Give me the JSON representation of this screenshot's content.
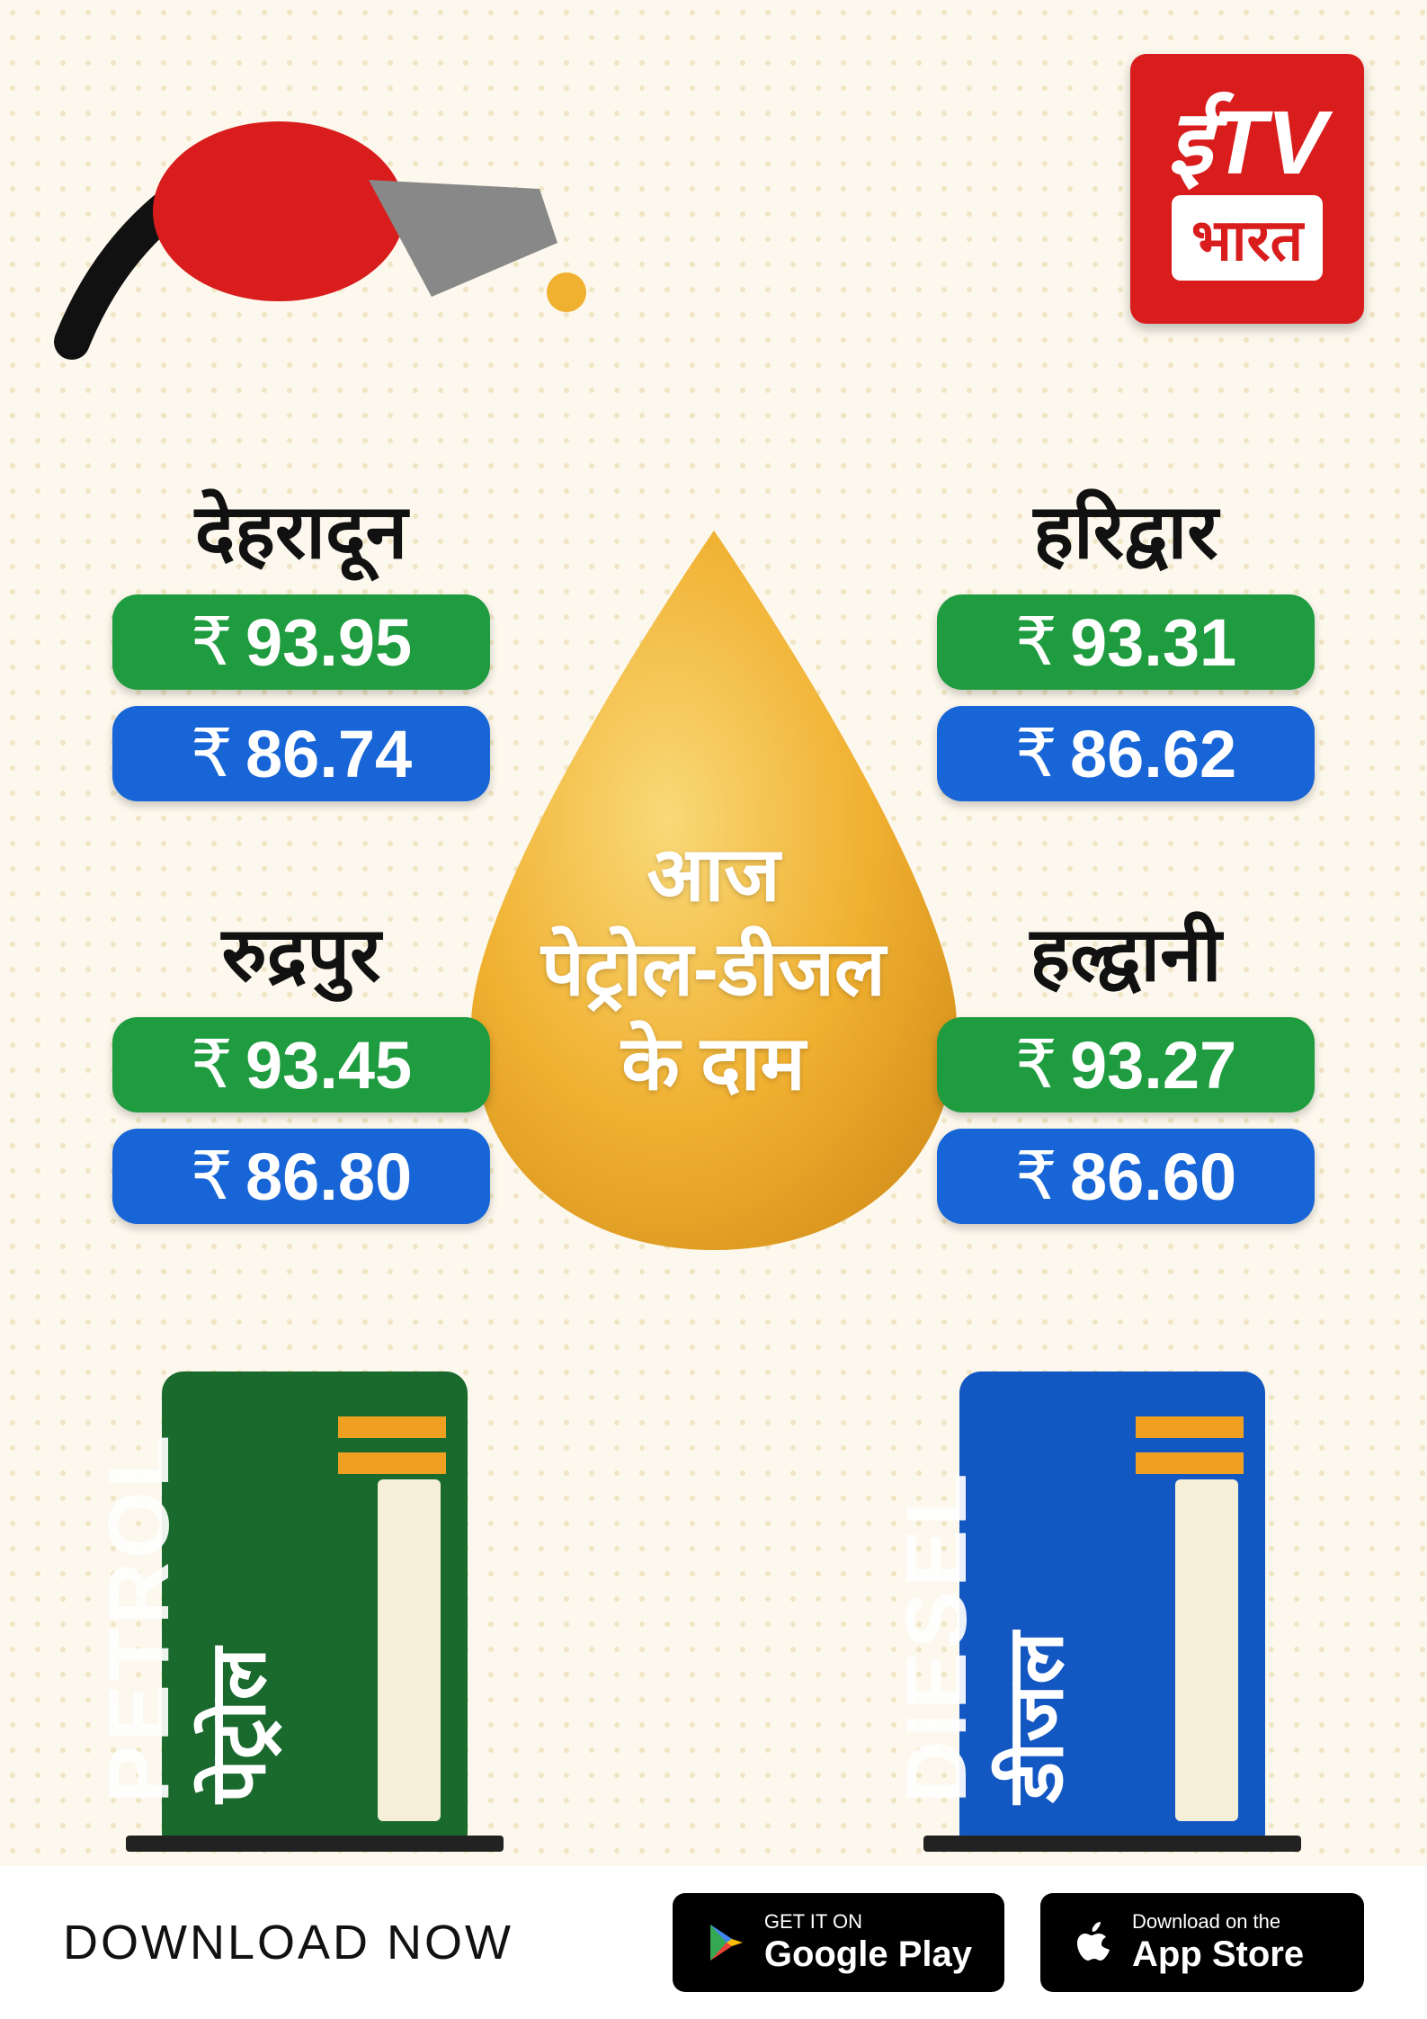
{
  "brand": {
    "logo_top": "ईTV",
    "logo_bottom": "भारत"
  },
  "currency": "₹",
  "drop": {
    "line1": "आज",
    "line2": "पेट्रोल-डीजल",
    "line3": "के दाम",
    "fill_light": "#f6c94a",
    "fill_dark": "#e2a92e"
  },
  "cities": [
    {
      "name": "देहरादून",
      "petrol": "93.95",
      "diesel": "86.74",
      "pos": "c1"
    },
    {
      "name": "रुद्रपुर",
      "petrol": "93.45",
      "diesel": "86.80",
      "pos": "c2"
    },
    {
      "name": "हरिद्वार",
      "petrol": "93.31",
      "diesel": "86.62",
      "pos": "c3"
    },
    {
      "name": "हल्द्वानी",
      "petrol": "93.27",
      "diesel": "86.60",
      "pos": "c4"
    }
  ],
  "colors": {
    "petrol": "#1e9c3f",
    "diesel": "#1765d6",
    "pump_petrol": "#1a6a2e",
    "pump_diesel": "#1358c2",
    "logo_bg": "#d91c1c",
    "accent": "#f0a020",
    "background": "#fdf8ed"
  },
  "pumps": {
    "petrol": {
      "en": "PETROL",
      "hi": "पेट्रोल"
    },
    "diesel": {
      "en": "DIESEL",
      "hi": "डीजल"
    }
  },
  "footer": {
    "download": "DOWNLOAD NOW",
    "gplay": {
      "small": "GET IT ON",
      "large": "Google Play"
    },
    "appstore": {
      "small": "Download on the",
      "large": "App Store"
    }
  }
}
